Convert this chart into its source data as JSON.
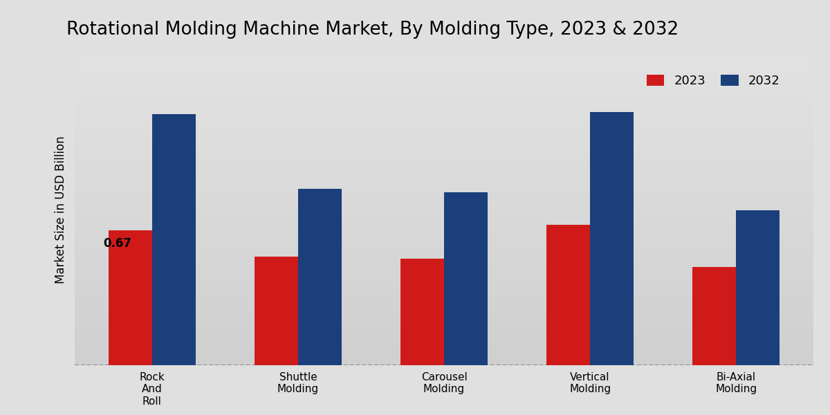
{
  "title": "Rotational Molding Machine Market, By Molding Type, 2023 & 2032",
  "ylabel": "Market Size in USD Billion",
  "categories": [
    "Rock\nAnd\nRoll",
    "Shuttle\nMolding",
    "Carousel\nMolding",
    "Vertical\nMolding",
    "Bi-Axial\nMolding"
  ],
  "values_2023": [
    0.67,
    0.54,
    0.53,
    0.7,
    0.49
  ],
  "values_2032": [
    1.25,
    0.88,
    0.86,
    1.26,
    0.77
  ],
  "color_2023": "#D01A1A",
  "color_2032": "#1A3F7A",
  "bar_width": 0.3,
  "annotation_value": "0.67",
  "annotation_category": 0,
  "background_color_top": "#ECECEC",
  "background_color_bottom": "#D2D2D2",
  "ylim": [
    0,
    1.55
  ],
  "legend_labels": [
    "2023",
    "2032"
  ],
  "title_fontsize": 19,
  "label_fontsize": 12,
  "tick_fontsize": 11,
  "legend_fontsize": 13
}
